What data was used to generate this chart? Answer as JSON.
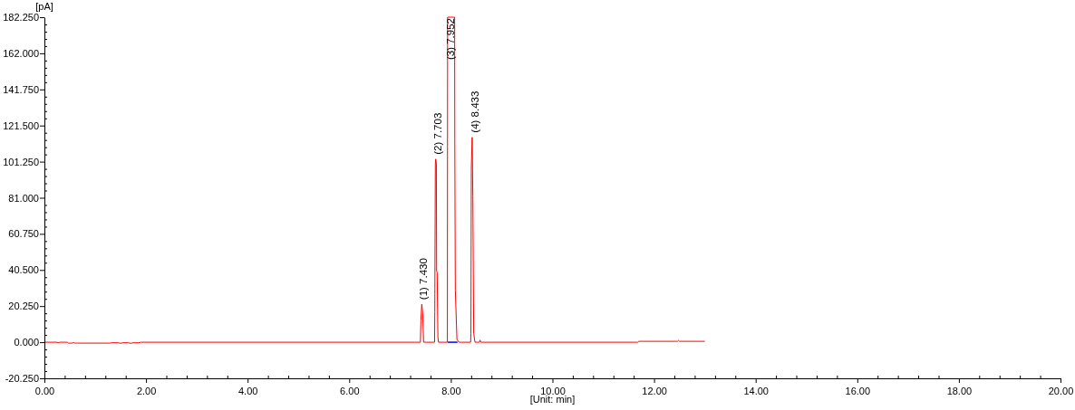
{
  "chart_data": {
    "type": "line",
    "xlabel": "[Unit: min]",
    "ylabel": "[pA]",
    "xlim": [
      0,
      20
    ],
    "ylim": [
      -20.25,
      182.25
    ],
    "xticks": [
      {
        "value": 0,
        "label": "0.00"
      },
      {
        "value": 0.4,
        "label": null
      },
      {
        "value": 0.8,
        "label": null
      },
      {
        "value": 1.2,
        "label": null
      },
      {
        "value": 1.6,
        "label": null
      },
      {
        "value": 2,
        "label": "2.00"
      },
      {
        "value": 2.4,
        "label": null
      },
      {
        "value": 2.8,
        "label": null
      },
      {
        "value": 3.2,
        "label": null
      },
      {
        "value": 3.6,
        "label": null
      },
      {
        "value": 4,
        "label": "4.00"
      },
      {
        "value": 4.4,
        "label": null
      },
      {
        "value": 4.8,
        "label": null
      },
      {
        "value": 5.2,
        "label": null
      },
      {
        "value": 5.6,
        "label": null
      },
      {
        "value": 6,
        "label": "6.00"
      },
      {
        "value": 6.4,
        "label": null
      },
      {
        "value": 6.8,
        "label": null
      },
      {
        "value": 7.2,
        "label": null
      },
      {
        "value": 7.6,
        "label": null
      },
      {
        "value": 8,
        "label": "8.00"
      },
      {
        "value": 8.4,
        "label": null
      },
      {
        "value": 8.8,
        "label": null
      },
      {
        "value": 9.2,
        "label": null
      },
      {
        "value": 9.6,
        "label": null
      },
      {
        "value": 10,
        "label": "10.00"
      },
      {
        "value": 10.4,
        "label": null
      },
      {
        "value": 10.8,
        "label": null
      },
      {
        "value": 11.2,
        "label": null
      },
      {
        "value": 11.6,
        "label": null
      },
      {
        "value": 12,
        "label": "12.00"
      },
      {
        "value": 12.4,
        "label": null
      },
      {
        "value": 12.8,
        "label": null
      },
      {
        "value": 13.2,
        "label": null
      },
      {
        "value": 13.6,
        "label": null
      },
      {
        "value": 14,
        "label": "14.00"
      },
      {
        "value": 14.4,
        "label": null
      },
      {
        "value": 14.8,
        "label": null
      },
      {
        "value": 15.2,
        "label": null
      },
      {
        "value": 15.6,
        "label": null
      },
      {
        "value": 16,
        "label": "16.00"
      },
      {
        "value": 16.4,
        "label": null
      },
      {
        "value": 16.8,
        "label": null
      },
      {
        "value": 17.2,
        "label": null
      },
      {
        "value": 17.6,
        "label": null
      },
      {
        "value": 18,
        "label": "18.00"
      },
      {
        "value": 18.4,
        "label": null
      },
      {
        "value": 18.8,
        "label": null
      },
      {
        "value": 19.2,
        "label": null
      },
      {
        "value": 19.6,
        "label": null
      },
      {
        "value": 20,
        "label": "20.00"
      }
    ],
    "yticks": [
      {
        "value": -20.25,
        "label": "-20.250"
      },
      {
        "value": -16.2,
        "label": null
      },
      {
        "value": -12.15,
        "label": null
      },
      {
        "value": -8.1,
        "label": null
      },
      {
        "value": -4.05,
        "label": null
      },
      {
        "value": 0,
        "label": "0.000"
      },
      {
        "value": 4.05,
        "label": null
      },
      {
        "value": 8.1,
        "label": null
      },
      {
        "value": 12.15,
        "label": null
      },
      {
        "value": 16.2,
        "label": null
      },
      {
        "value": 20.25,
        "label": "20.250"
      },
      {
        "value": 24.3,
        "label": null
      },
      {
        "value": 28.35,
        "label": null
      },
      {
        "value": 32.4,
        "label": null
      },
      {
        "value": 36.45,
        "label": null
      },
      {
        "value": 40.5,
        "label": "40.500"
      },
      {
        "value": 44.55,
        "label": null
      },
      {
        "value": 48.6,
        "label": null
      },
      {
        "value": 52.65,
        "label": null
      },
      {
        "value": 56.7,
        "label": null
      },
      {
        "value": 60.75,
        "label": "60.750"
      },
      {
        "value": 64.8,
        "label": null
      },
      {
        "value": 68.85,
        "label": null
      },
      {
        "value": 72.9,
        "label": null
      },
      {
        "value": 76.95,
        "label": null
      },
      {
        "value": 81,
        "label": "81.000"
      },
      {
        "value": 85.05,
        "label": null
      },
      {
        "value": 89.1,
        "label": null
      },
      {
        "value": 93.15,
        "label": null
      },
      {
        "value": 97.2,
        "label": null
      },
      {
        "value": 101.25,
        "label": "101.250"
      },
      {
        "value": 105.3,
        "label": null
      },
      {
        "value": 109.35,
        "label": null
      },
      {
        "value": 113.4,
        "label": null
      },
      {
        "value": 117.45,
        "label": null
      },
      {
        "value": 121.5,
        "label": "121.500"
      },
      {
        "value": 125.55,
        "label": null
      },
      {
        "value": 129.6,
        "label": null
      },
      {
        "value": 133.65,
        "label": null
      },
      {
        "value": 137.7,
        "label": null
      },
      {
        "value": 141.75,
        "label": "141.750"
      },
      {
        "value": 145.8,
        "label": null
      },
      {
        "value": 149.85,
        "label": null
      },
      {
        "value": 153.9,
        "label": null
      },
      {
        "value": 157.95,
        "label": null
      },
      {
        "value": 162,
        "label": "162.000"
      },
      {
        "value": 166.05,
        "label": null
      },
      {
        "value": 170.1,
        "label": null
      },
      {
        "value": 174.15,
        "label": null
      },
      {
        "value": 178.2,
        "label": null
      },
      {
        "value": 182.25,
        "label": "182.250"
      }
    ],
    "series": [
      {
        "color": "#ff0000",
        "x": [
          0,
          0.25,
          0.27,
          0.3,
          0.45,
          0.47,
          0.55,
          0.57,
          0.6,
          0.65,
          1.3,
          1.32,
          1.45,
          1.5,
          1.55,
          1.65,
          1.7,
          1.75,
          1.85,
          1.9,
          7.4,
          7.41,
          7.428,
          7.446,
          7.464,
          7.68,
          7.684,
          7.695,
          7.703,
          7.715,
          7.72,
          7.731,
          7.745,
          7.756,
          7.932,
          7.936,
          8.075,
          8.078,
          8.088,
          8.12,
          8.16,
          8.39,
          8.395,
          8.403,
          8.42,
          8.433,
          8.45,
          8.475,
          8.56,
          8.575,
          8.59,
          11.68,
          11.7,
          12.46,
          12.48,
          12.5,
          13
        ],
        "values": [
          0,
          0,
          -0.3,
          0,
          0,
          -0.5,
          -0.5,
          -0.2,
          -0.5,
          -0.5,
          -0.5,
          -0.3,
          -0.3,
          -0.6,
          -0.3,
          -0.3,
          -0.6,
          -0.3,
          -0.3,
          0,
          0,
          12,
          21.3,
          16.4,
          0,
          0,
          17,
          100,
          102.7,
          100,
          40,
          39,
          3,
          0,
          0,
          182.25,
          182.25,
          113.7,
          29.4,
          1.5,
          0,
          0,
          5,
          98,
          114.9,
          81.9,
          5,
          0,
          0,
          1.2,
          0,
          0,
          0.5,
          0.5,
          1,
          0.5,
          0.5
        ]
      },
      {
        "color": "#0000ff",
        "x": [
          7.94,
          8.13
        ],
        "values": [
          0,
          0
        ]
      }
    ],
    "annotations": [
      {
        "text": "(1) 7.430",
        "x": 7.43,
        "y": 21.3
      },
      {
        "text": "(2) 7.703",
        "x": 7.703,
        "y": 102.7
      },
      {
        "text": "(3) 7.952",
        "x": 7.952,
        "y": 182.25
      },
      {
        "text": "(4) 8.433",
        "x": 8.433,
        "y": 114.9
      }
    ]
  }
}
